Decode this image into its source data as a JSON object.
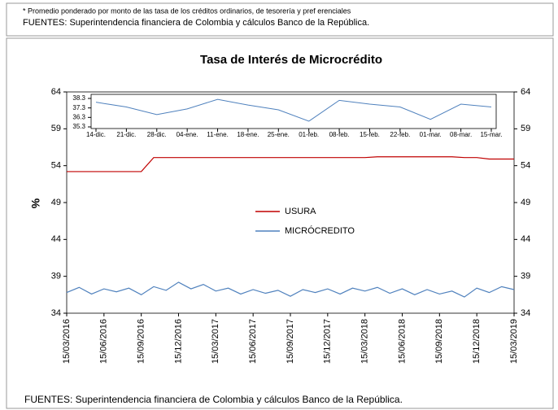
{
  "header": {
    "note": "* Promedio ponderado por monto de las tasa de los créditos ordinarios, de tesorería y pref erenciales",
    "source": "FUENTES:   Superintendencia financiera de Colombia  y cálculos Banco de la República."
  },
  "footer": {
    "source": "FUENTES: Superintendencia financiera de Colombia y cálculos Banco de la República."
  },
  "chart_data": [
    {
      "type": "line",
      "title": "Tasa de Interés de Microcrédito",
      "y_label": "%",
      "categories": [
        "15/03/2016",
        null,
        null,
        "15/06/2016",
        null,
        null,
        "15/09/2016",
        null,
        null,
        "15/12/2016",
        null,
        null,
        "15/03/2017",
        null,
        null,
        "15/06/2017",
        null,
        null,
        "15/09/2017",
        null,
        null,
        "15/12/2017",
        null,
        null,
        "15/03/2018",
        null,
        null,
        "15/06/2018",
        null,
        null,
        "15/09/2018",
        null,
        null,
        "15/12/2018",
        null,
        null,
        "15/03/2019"
      ],
      "series": [
        {
          "name": "USURA",
          "color": "#c00000",
          "values": [
            53.2,
            53.2,
            53.2,
            53.2,
            53.2,
            53.2,
            53.2,
            55.1,
            55.1,
            55.1,
            55.1,
            55.1,
            55.1,
            55.1,
            55.1,
            55.1,
            55.1,
            55.1,
            55.1,
            55.1,
            55.1,
            55.1,
            55.1,
            55.1,
            55.1,
            55.2,
            55.2,
            55.2,
            55.2,
            55.2,
            55.2,
            55.2,
            55.1,
            55.1,
            54.9,
            54.9,
            54.9
          ]
        },
        {
          "name": "MICRÓCREDITO",
          "color": "#4f81bd",
          "values": [
            36.8,
            37.5,
            36.6,
            37.3,
            36.9,
            37.4,
            36.5,
            37.6,
            37.1,
            38.2,
            37.3,
            37.9,
            37.0,
            37.4,
            36.6,
            37.2,
            36.7,
            37.1,
            36.3,
            37.2,
            36.8,
            37.3,
            36.6,
            37.4,
            37.0,
            37.5,
            36.7,
            37.3,
            36.5,
            37.2,
            36.6,
            37.0,
            36.2,
            37.4,
            36.8,
            37.6,
            37.2
          ]
        }
      ],
      "ylim": [
        34,
        64
      ],
      "yticks": [
        34,
        39,
        44,
        49,
        54,
        59,
        64
      ],
      "y2lim": [
        34,
        64
      ],
      "y2ticks": [
        34,
        39,
        44,
        49,
        54,
        59,
        64
      ]
    },
    {
      "type": "line",
      "categories": [
        "14-dic.",
        "21-dic.",
        "28-dic.",
        "04-ene.",
        "11-ene.",
        "18-ene.",
        "25-ene.",
        "01-feb.",
        "08-feb.",
        "15-feb.",
        "22-feb.",
        "01-mar.",
        "08-mar.",
        "15-mar."
      ],
      "series": [
        {
          "color": "#4f81bd",
          "values": [
            37.9,
            37.4,
            36.6,
            37.2,
            38.2,
            37.6,
            37.1,
            35.9,
            38.1,
            37.7,
            37.4,
            36.1,
            37.7,
            37.4
          ]
        }
      ],
      "ylim": [
        35.3,
        38.3
      ],
      "yticks": [
        35.3,
        36.3,
        37.3,
        38.3
      ]
    }
  ]
}
